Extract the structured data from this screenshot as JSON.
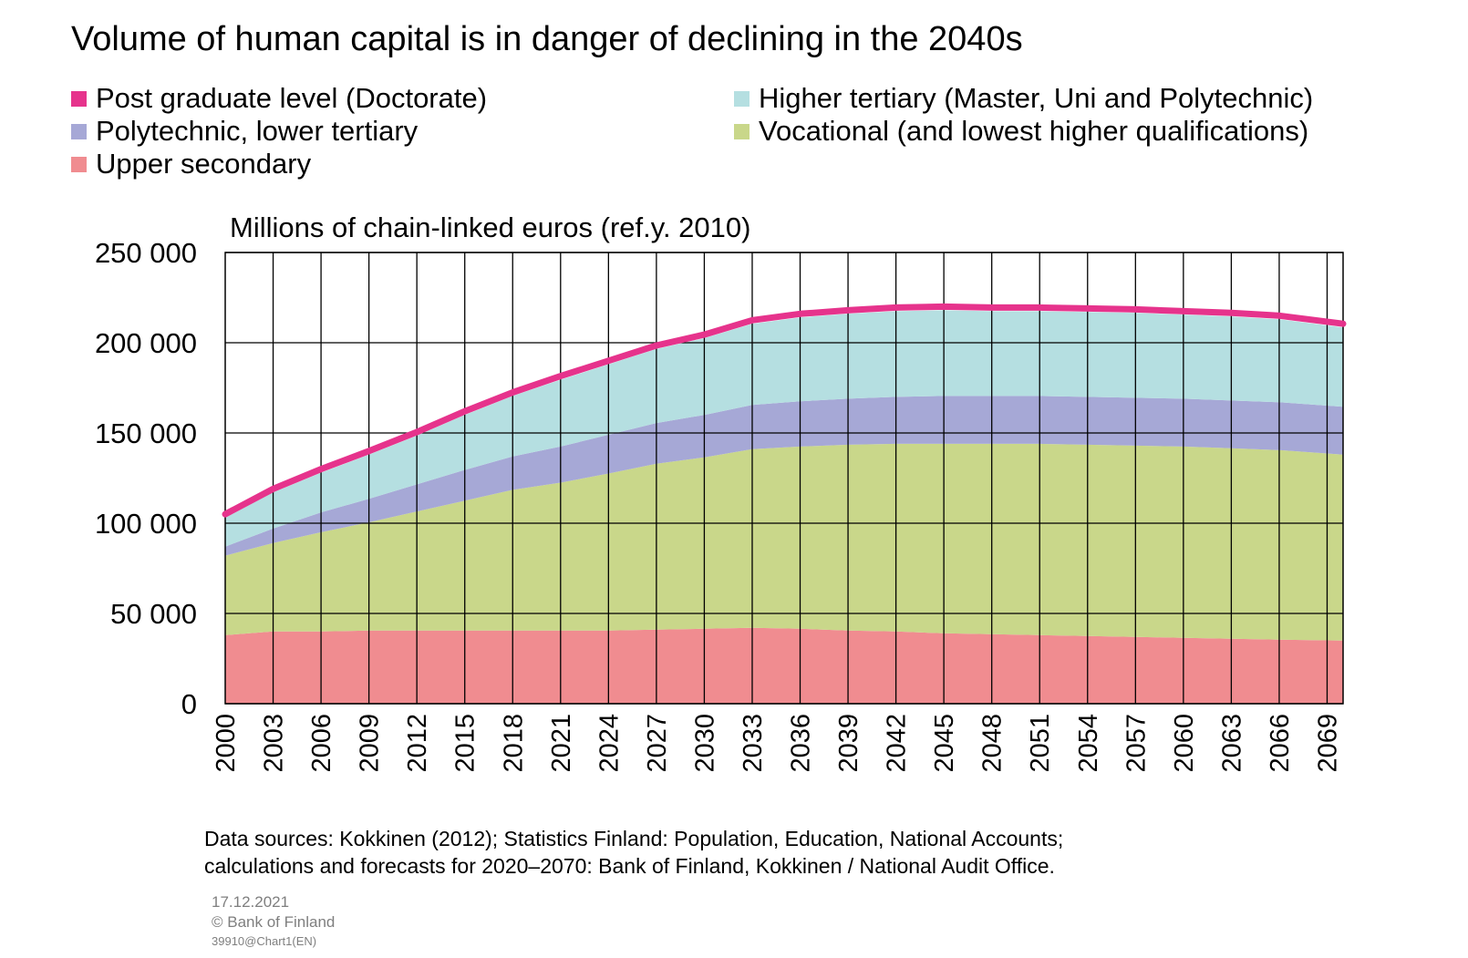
{
  "chart_data": {
    "type": "area",
    "stacked": true,
    "title": "Volume of human capital is in danger of declining in the 2040s",
    "unit_label": "Millions of chain-linked euros (ref.y. 2010)",
    "ylim": [
      0,
      250000
    ],
    "yticks": [
      0,
      50000,
      100000,
      150000,
      200000,
      250000
    ],
    "ytick_labels": [
      "0",
      "50 000",
      "100 000",
      "150 000",
      "200 000",
      "250 000"
    ],
    "xlim": [
      2000,
      2070
    ],
    "xtick_labels": [
      "2000",
      "2003",
      "2006",
      "2009",
      "2012",
      "2015",
      "2018",
      "2021",
      "2024",
      "2027",
      "2030",
      "2033",
      "2036",
      "2039",
      "2042",
      "2045",
      "2048",
      "2051",
      "2054",
      "2057",
      "2060",
      "2063",
      "2066",
      "2069"
    ],
    "grid": true,
    "legend_position": "top",
    "x": [
      2000,
      2003,
      2006,
      2009,
      2012,
      2015,
      2018,
      2021,
      2024,
      2027,
      2030,
      2033,
      2036,
      2039,
      2042,
      2045,
      2048,
      2051,
      2054,
      2057,
      2060,
      2063,
      2066,
      2070
    ],
    "series": [
      {
        "name": "Upper secondary",
        "color": "#f08c90",
        "values": [
          38000,
          40000,
          40000,
          40500,
          40500,
          40500,
          40500,
          40500,
          40500,
          41000,
          41500,
          42000,
          41500,
          40500,
          40000,
          39000,
          38500,
          38000,
          37500,
          37000,
          36500,
          36000,
          35500,
          35000
        ]
      },
      {
        "name": "Vocational (and lowest higher qualifications)",
        "color": "#c9d78a",
        "values": [
          44000,
          49000,
          55000,
          60000,
          66000,
          72000,
          78000,
          82000,
          87000,
          92000,
          95000,
          99000,
          101000,
          103000,
          104000,
          105000,
          105500,
          106000,
          106000,
          106000,
          106000,
          105500,
          105000,
          103000
        ]
      },
      {
        "name": "Polytechnic, lower tertiary",
        "color": "#a6a8d6",
        "values": [
          5000,
          8000,
          11000,
          13000,
          15000,
          17000,
          18500,
          20000,
          21500,
          22500,
          23500,
          24500,
          25000,
          25500,
          26000,
          26500,
          26500,
          26500,
          26500,
          26500,
          26500,
          26500,
          26500,
          26500
        ]
      },
      {
        "name": "Higher tertiary (Master, Uni and Polytechnic)",
        "color": "#b5dfe1",
        "values": [
          16000,
          20000,
          22000,
          24500,
          27000,
          30500,
          33500,
          37000,
          39000,
          41000,
          42500,
          45000,
          46500,
          47000,
          47500,
          47500,
          47000,
          47000,
          47000,
          47000,
          46500,
          46500,
          46000,
          44000
        ]
      },
      {
        "name": "Post graduate level (Doctorate)",
        "color": "#e6338c",
        "values": [
          2000,
          2000,
          2000,
          2000,
          2000,
          2000,
          2000,
          2000,
          2000,
          2000,
          2000,
          2000,
          2000,
          2000,
          2000,
          2000,
          2000,
          2000,
          2000,
          2000,
          2000,
          2000,
          2000,
          2000
        ]
      }
    ],
    "grid_color": "#000000"
  },
  "sources": [
    "Data sources: Kokkinen (2012); Statistics Finland: Population, Education, National Accounts;",
    "calculations and forecasts for 2020–2070: Bank of Finland, Kokkinen / National Audit Office."
  ],
  "footer": {
    "date": "17.12.2021",
    "copyright": "© Bank of Finland",
    "code": "39910@Chart1(EN)"
  }
}
